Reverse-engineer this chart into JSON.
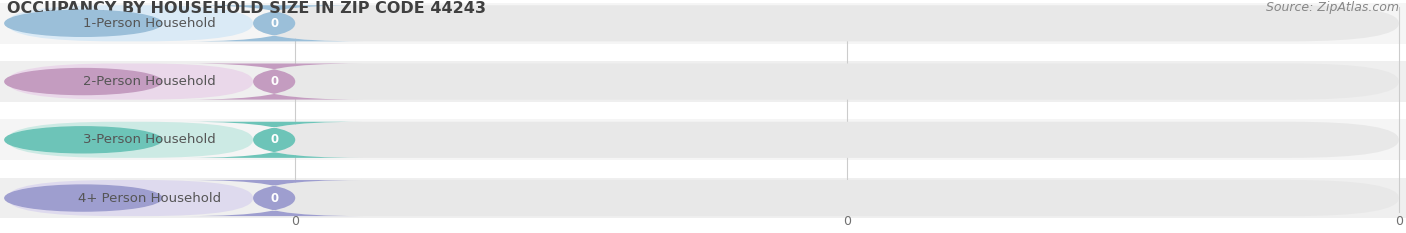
{
  "title": "OCCUPANCY BY HOUSEHOLD SIZE IN ZIP CODE 44243",
  "source": "Source: ZipAtlas.com",
  "categories": [
    "1-Person Household",
    "2-Person Household",
    "3-Person Household",
    "4+ Person Household"
  ],
  "values": [
    0,
    0,
    0,
    0
  ],
  "bar_colors": [
    "#9bbfd9",
    "#c49cc0",
    "#6dc4b8",
    "#9e9ecf"
  ],
  "label_bg_colors": [
    "#daeaf6",
    "#ead8ea",
    "#cceae4",
    "#dedaee"
  ],
  "bar_background": "#e8e8e8",
  "row_stripe_colors": [
    "#f5f5f5",
    "#efefef"
  ],
  "background_color": "#ffffff",
  "title_color": "#404040",
  "label_color": "#555555",
  "value_color": "#ffffff",
  "source_color": "#888888",
  "title_fontsize": 11.5,
  "label_fontsize": 9.5,
  "tick_fontsize": 9,
  "source_fontsize": 9
}
